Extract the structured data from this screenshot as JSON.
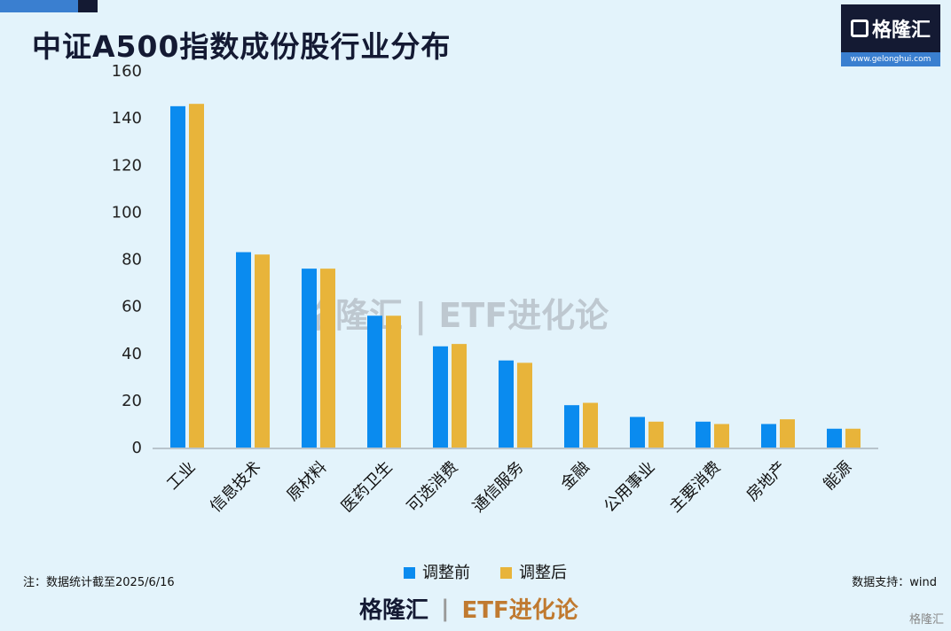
{
  "title": "中证A500指数成份股行业分布",
  "logo": {
    "name": "格隆汇",
    "url": "www.gelonghui.com"
  },
  "watermark": "格隆汇 | ETF进化论",
  "note": "注：数据统计截至2025/6/16",
  "source": "数据支持：wind",
  "bottom_logo": {
    "left": "格隆汇",
    "right": "ETF进化论"
  },
  "corner_mark": "格隆汇",
  "colors": {
    "before": "#0a8bef",
    "after": "#e8b43a",
    "background": "#e3f3fb"
  },
  "chart_data": {
    "type": "bar",
    "title": "中证A500指数成份股行业分布",
    "categories": [
      "工业",
      "信息技术",
      "原材料",
      "医药卫生",
      "可选消费",
      "通信服务",
      "金融",
      "公用事业",
      "主要消费",
      "房地产",
      "能源"
    ],
    "series": [
      {
        "name": "调整前",
        "values": [
          145,
          83,
          76,
          56,
          43,
          37,
          18,
          13,
          11,
          10,
          8
        ]
      },
      {
        "name": "调整后",
        "values": [
          146,
          82,
          76,
          56,
          44,
          36,
          19,
          11,
          10,
          12,
          8
        ]
      }
    ],
    "ylim": [
      0,
      160
    ],
    "yticks": [
      0,
      20,
      40,
      60,
      80,
      100,
      120,
      140,
      160
    ],
    "grid": false,
    "legend": "bottom"
  }
}
